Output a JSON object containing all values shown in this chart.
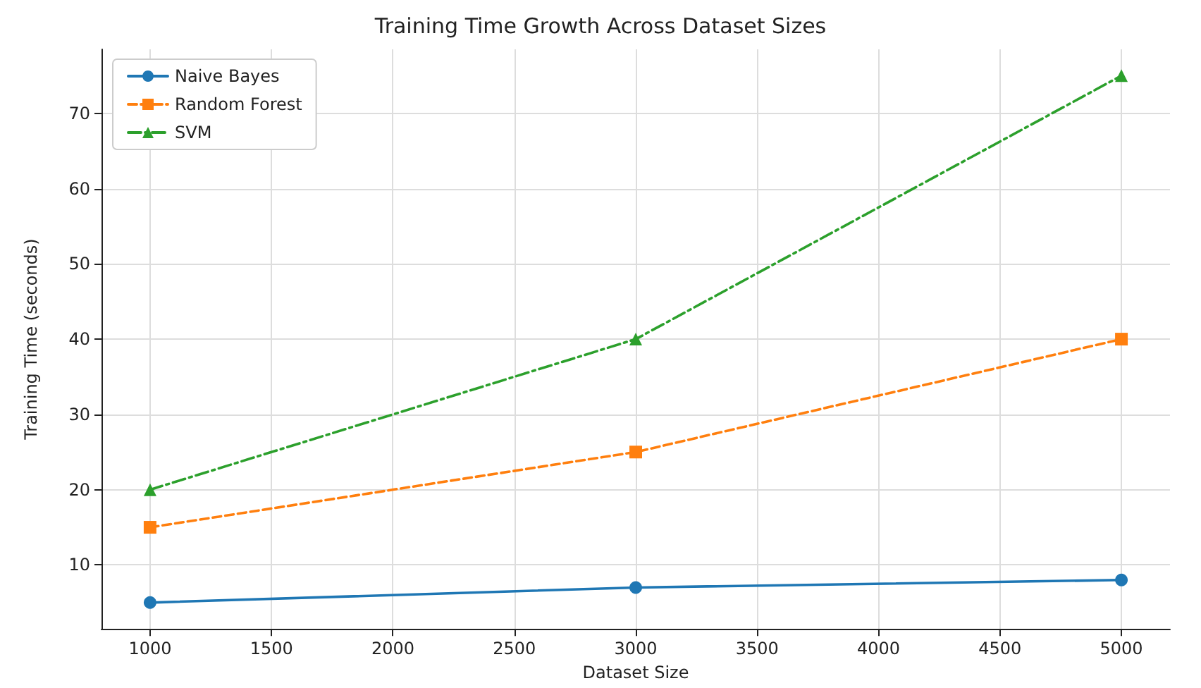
{
  "chart_data": {
    "type": "line",
    "title": "Training Time Growth Across Dataset Sizes",
    "xlabel": "Dataset Size",
    "ylabel": "Training Time (seconds)",
    "x": [
      1000,
      3000,
      5000
    ],
    "series": [
      {
        "name": "Naive Bayes",
        "color": "#1f77b4",
        "values": [
          5,
          7,
          8
        ],
        "marker": "circle",
        "line_style": "solid"
      },
      {
        "name": "Random Forest",
        "color": "#ff7f0e",
        "values": [
          15,
          25,
          40
        ],
        "marker": "square",
        "line_style": "dashed"
      },
      {
        "name": "SVM",
        "color": "#2ca02c",
        "values": [
          20,
          40,
          75
        ],
        "marker": "triangle",
        "line_style": "dashdot"
      }
    ],
    "xlim": [
      800,
      5200
    ],
    "xticks": [
      1000,
      1500,
      2000,
      2500,
      3000,
      3500,
      4000,
      4500,
      5000
    ],
    "ylim": [
      1.5,
      78.5
    ],
    "yticks": [
      10,
      20,
      30,
      40,
      50,
      60,
      70
    ],
    "grid": true,
    "legend": "top left"
  }
}
